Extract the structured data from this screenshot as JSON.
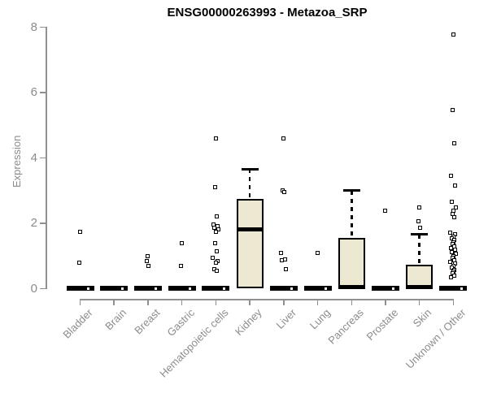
{
  "title": "ENSG00000263993 - Metazoa_SRP",
  "ylabel": "Expression",
  "chart_data": {
    "type": "boxplot",
    "title": "ENSG00000263993 - Metazoa_SRP",
    "xlabel": "",
    "ylabel": "Expression",
    "ylim": [
      0,
      8
    ],
    "yticks": [
      0,
      2,
      4,
      6,
      8
    ],
    "grid": false,
    "legend": false,
    "categories": [
      "Bladder",
      "Brain",
      "Breast",
      "Gastric",
      "Hematopoietic cells",
      "Kidney",
      "Liver",
      "Lung",
      "Pancreas",
      "Prostate",
      "Skin",
      "Unknown / Other"
    ],
    "boxes": [
      {
        "category": "Bladder",
        "q1": 0,
        "median": 0,
        "q3": 0,
        "whisker_low": 0,
        "whisker_high": 0,
        "outliers": [
          1.75,
          0.8,
          0
        ]
      },
      {
        "category": "Brain",
        "q1": 0,
        "median": 0,
        "q3": 0,
        "whisker_low": 0,
        "whisker_high": 0,
        "outliers": [
          0
        ]
      },
      {
        "category": "Breast",
        "q1": 0,
        "median": 0,
        "q3": 0,
        "whisker_low": 0,
        "whisker_high": 0,
        "outliers": [
          1.0,
          0.85,
          0.7,
          0
        ]
      },
      {
        "category": "Gastric",
        "q1": 0,
        "median": 0,
        "q3": 0,
        "whisker_low": 0,
        "whisker_high": 0,
        "outliers": [
          1.4,
          0.7,
          0
        ]
      },
      {
        "category": "Hematopoietic cells",
        "q1": 0,
        "median": 0,
        "q3": 0,
        "whisker_low": 0,
        "whisker_high": 0,
        "outliers": [
          4.6,
          3.1,
          2.2,
          1.95,
          1.9,
          1.85,
          1.8,
          1.75,
          1.4,
          1.15,
          0.95,
          0.85,
          0.8,
          0.6,
          0.55,
          0
        ]
      },
      {
        "category": "Kidney",
        "q1": 0.02,
        "median": 1.8,
        "q3": 2.75,
        "whisker_low": 0.02,
        "whisker_high": 3.65,
        "outliers": []
      },
      {
        "category": "Liver",
        "q1": 0,
        "median": 0,
        "q3": 0,
        "whisker_low": 0,
        "whisker_high": 0,
        "outliers": [
          4.6,
          3.0,
          2.95,
          1.1,
          0.9,
          0.88,
          0.6,
          0
        ]
      },
      {
        "category": "Lung",
        "q1": 0,
        "median": 0,
        "q3": 0,
        "whisker_low": 0,
        "whisker_high": 0,
        "outliers": [
          1.1,
          0
        ]
      },
      {
        "category": "Pancreas",
        "q1": 0.02,
        "median": 0.05,
        "q3": 1.55,
        "whisker_low": 0.02,
        "whisker_high": 3.0,
        "outliers": []
      },
      {
        "category": "Prostate",
        "q1": 0,
        "median": 0,
        "q3": 0,
        "whisker_low": 0,
        "whisker_high": 0,
        "outliers": [
          2.38,
          0
        ]
      },
      {
        "category": "Skin",
        "q1": 0.02,
        "median": 0.04,
        "q3": 0.73,
        "whisker_low": 0.02,
        "whisker_high": 1.66,
        "outliers": [
          2.48,
          2.06,
          1.86
        ]
      },
      {
        "category": "Unknown / Other",
        "q1": 0,
        "median": 0,
        "q3": 0,
        "whisker_low": 0,
        "whisker_high": 0,
        "outliers": [
          7.78,
          5.45,
          4.45,
          3.45,
          3.15,
          2.65,
          2.48,
          2.38,
          2.28,
          2.18,
          1.72,
          1.66,
          1.6,
          1.54,
          1.48,
          1.42,
          1.36,
          1.3,
          1.24,
          1.18,
          1.12,
          1.06,
          1.0,
          0.94,
          0.88,
          0.82,
          0.76,
          0.7,
          0.64,
          0.58,
          0.52,
          0.46,
          0.4,
          0.34,
          0
        ]
      }
    ],
    "colors": {
      "box_fill": "#EDE8D1",
      "box_border": "#000000",
      "median": "#000000",
      "axis": "#909090",
      "tick_label": "#8c8c8c",
      "title": "#000000",
      "outlier_fill": "#ffffff"
    }
  }
}
